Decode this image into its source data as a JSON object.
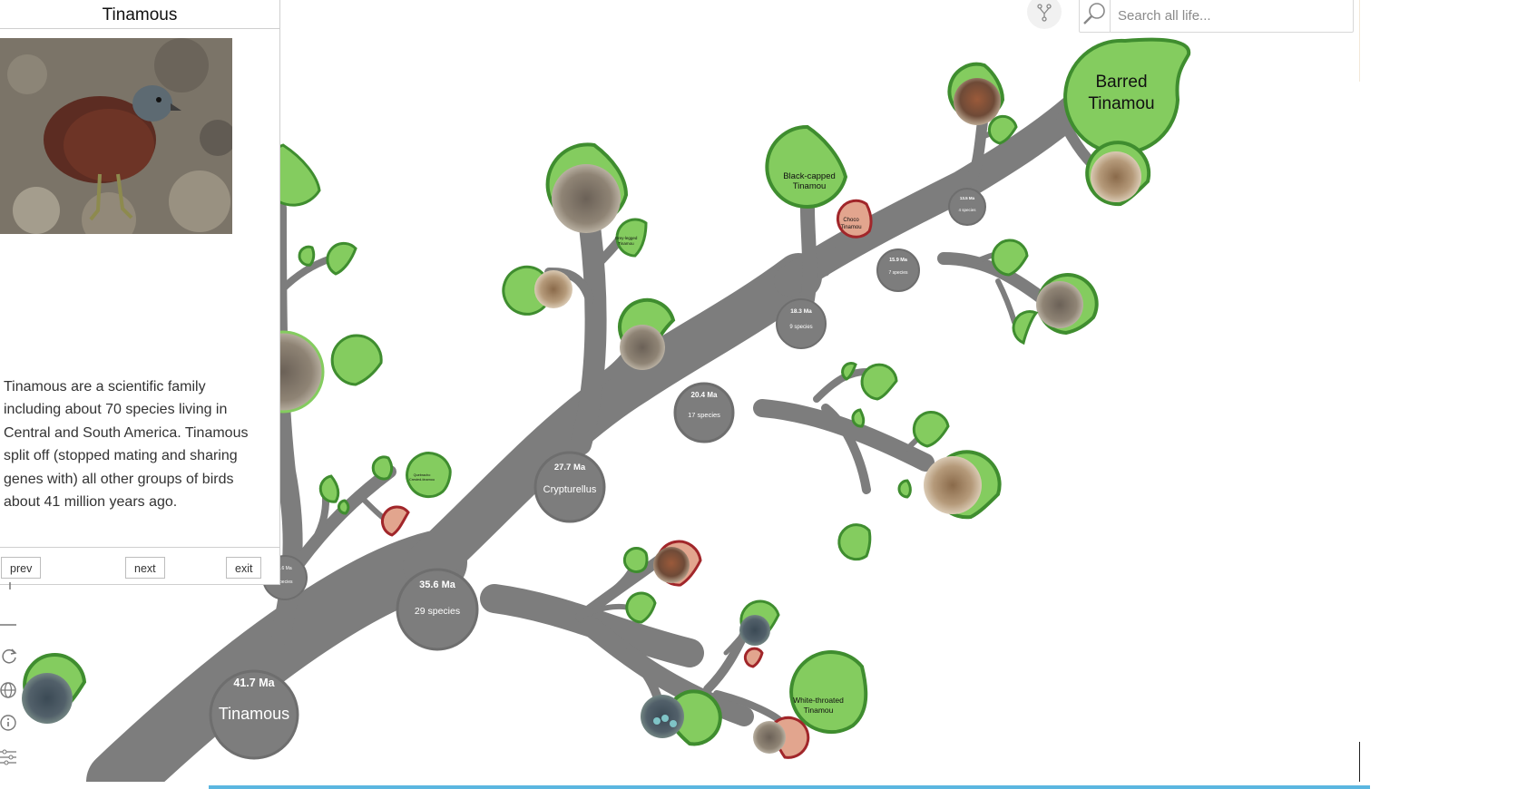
{
  "panel": {
    "title": "Tinamous",
    "description": "Tinamous are a scientific family including about 70 species living in Central and South America. Tinamous split off (stopped mating and sharing genes with) all other groups of birds about 41 million years ago.",
    "nav": {
      "prev": "prev",
      "next": "next",
      "exit": "exit"
    }
  },
  "search": {
    "placeholder": "Search all life..."
  },
  "tree": {
    "nodes": [
      {
        "age": "41.7 Ma",
        "name": "Tinamous"
      },
      {
        "age": "35.6 Ma",
        "name": "29 species"
      },
      {
        "age": "27.7 Ma",
        "name": "Crypturellus"
      },
      {
        "age": "20.4 Ma",
        "name": "17 species"
      },
      {
        "age": "18.3 Ma",
        "name": "9 species"
      },
      {
        "age": "15.9 Ma",
        "name": "7 species"
      },
      {
        "age": "13.5 Ma",
        "name": "4 species"
      },
      {
        "age": "5.6 Ma",
        "name": "species"
      }
    ],
    "leaves": {
      "barred": [
        "Barred",
        "Tinamou"
      ],
      "black_capped": [
        "Black-capped",
        "Tinamou"
      ],
      "choco": [
        "Choco",
        "Tinamou"
      ],
      "grey_legged": [
        "Grey-legged",
        "Tinamou"
      ],
      "white_throated": [
        "White-throated",
        "Tinamou"
      ],
      "red_winged": [
        "Quebracho",
        "Crested-tinamou"
      ]
    }
  },
  "colors": {
    "branch": "#7d7d7d",
    "leaf_fill": "#84cc5f",
    "leaf_border": "#3f8d2f",
    "threatened_border": "#a1262a",
    "threatened_fill": "#e2a58e"
  }
}
